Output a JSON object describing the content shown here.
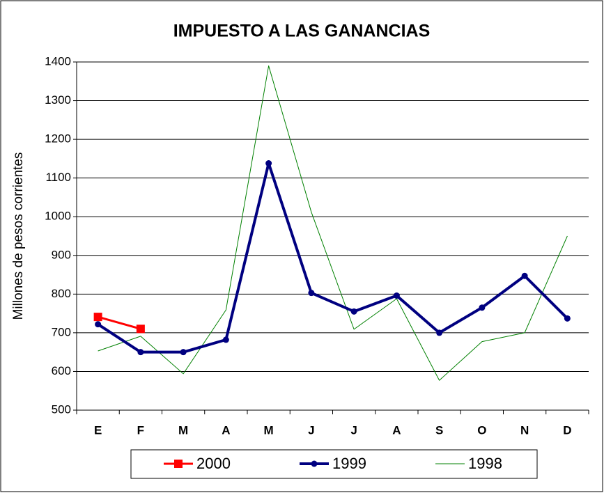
{
  "chart_data": {
    "type": "line",
    "title": "IMPUESTO A LAS GANANCIAS",
    "y_label": "Millones de pesos corrientes",
    "categories": [
      "E",
      "F",
      "M",
      "A",
      "M",
      "J",
      "J",
      "A",
      "S",
      "O",
      "N",
      "D"
    ],
    "series": [
      {
        "name": "2000",
        "color": "#ff0000",
        "marker": "square",
        "line_width": 3,
        "values": [
          741,
          710,
          null,
          null,
          null,
          null,
          null,
          null,
          null,
          null,
          null,
          null
        ]
      },
      {
        "name": "1999",
        "color": "#000080",
        "marker": "circle",
        "line_width": 4,
        "values": [
          722,
          650,
          650,
          682,
          1138,
          803,
          755,
          796,
          700,
          765,
          847,
          737
        ]
      },
      {
        "name": "1998",
        "color": "#008000",
        "marker": "none",
        "line_width": 1,
        "values": [
          653,
          691,
          594,
          759,
          1390,
          1012,
          709,
          788,
          577,
          677,
          700,
          950
        ]
      }
    ],
    "ylim": [
      500,
      1400
    ],
    "yticks": [
      500,
      600,
      700,
      800,
      900,
      1000,
      1100,
      1200,
      1300,
      1400
    ],
    "grid": true,
    "legend": "bottom"
  }
}
